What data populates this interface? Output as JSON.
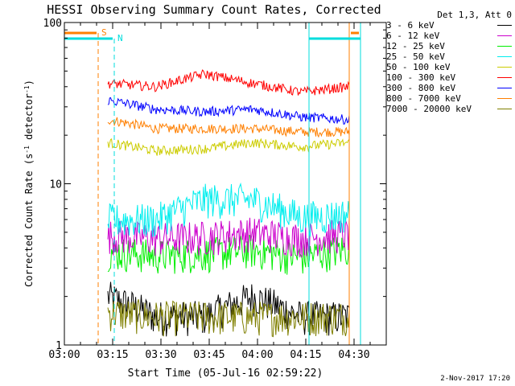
{
  "chart_data": {
    "type": "line",
    "title": "HESSI Observing Summary Count Rates, Corrected",
    "xlabel": "Start Time (05-Jul-16 02:59:22)",
    "ylabel": "Corrected Count Rate (s",
    "ylabel_sup": "-1",
    "ylabel_mid": " detector",
    "ylabel_end": ")",
    "yscale": "log",
    "ylim": [
      1,
      100
    ],
    "xlim_minutes": [
      0,
      100
    ],
    "x_ticks": [
      "03:00",
      "03:15",
      "03:30",
      "03:45",
      "04:00",
      "04:15",
      "04:30"
    ],
    "x_tick_minutes": [
      0,
      15,
      30,
      45,
      60,
      75,
      90
    ],
    "y_ticks": [
      "1",
      "10",
      "100"
    ],
    "y_tick_values": [
      1,
      10,
      100
    ],
    "legend_header": "Det 1,3, Att 0",
    "legend_position": "right",
    "data_start_minute": 13.5,
    "data_end_minute": 88.5,
    "series": [
      {
        "name": "3 - 6 keV",
        "color": "#000000",
        "values": [
          2,
          1.5,
          1.5,
          2,
          1.5,
          1.5
        ]
      },
      {
        "name": "6 - 12 keV",
        "color": "#cc00cc",
        "values": [
          4.8,
          4.6,
          4.7,
          5,
          4.6,
          4.9
        ]
      },
      {
        "name": "12 - 25 keV",
        "color": "#00ee00",
        "values": [
          3.8,
          3.6,
          3.7,
          3.9,
          3.5,
          4
        ]
      },
      {
        "name": "25 - 50 keV",
        "color": "#00eeee",
        "values": [
          6,
          6,
          8,
          8,
          6.2,
          6.5
        ]
      },
      {
        "name": "50 - 100 keV",
        "color": "#cccc00",
        "values": [
          18,
          16,
          16.5,
          18,
          17,
          18
        ]
      },
      {
        "name": "100 - 300 keV",
        "color": "#ff0000",
        "values": [
          42,
          40,
          48,
          42,
          37,
          40
        ]
      },
      {
        "name": "300 - 800 keV",
        "color": "#0000ff",
        "values": [
          33,
          29,
          28,
          29,
          26,
          25
        ]
      },
      {
        "name": "800 - 7000 keV",
        "color": "#ff7f00",
        "values": [
          25,
          22,
          22,
          22,
          21,
          21
        ]
      },
      {
        "name": "7000 - 20000 keV",
        "color": "#7f7f00",
        "values": [
          1.6,
          1.5,
          1.5,
          1.5,
          1.5,
          1.5
        ]
      }
    ],
    "flags": [
      {
        "label": "S",
        "color": "#ff7f00",
        "segments": [
          [
            0,
            10
          ],
          [
            89,
            91.5
          ]
        ],
        "dashed_marker_minute": 10.5
      },
      {
        "label": "N",
        "color": "#00dddd",
        "segments": [
          [
            0,
            15
          ],
          [
            76,
            92
          ]
        ],
        "dashed_marker_minute": 15.5
      }
    ],
    "vertical_markers": [
      {
        "color": "#00dddd",
        "minutes": [
          0,
          76,
          92
        ]
      },
      {
        "color": "#ff7f00",
        "minutes": [
          88.5
        ]
      }
    ]
  },
  "footer": {
    "date": "2-Nov-2017 17:20"
  }
}
